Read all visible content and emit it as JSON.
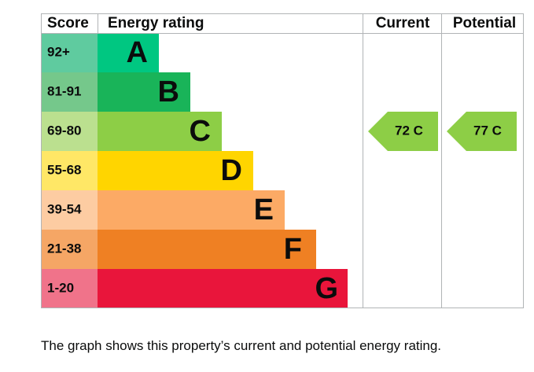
{
  "header": {
    "score": "Score",
    "energy_rating": "Energy rating",
    "current": "Current",
    "potential": "Potential"
  },
  "bands": [
    {
      "score": "92+",
      "letter": "A"
    },
    {
      "score": "81-91",
      "letter": "B"
    },
    {
      "score": "69-80",
      "letter": "C"
    },
    {
      "score": "55-68",
      "letter": "D"
    },
    {
      "score": "39-54",
      "letter": "E"
    },
    {
      "score": "21-38",
      "letter": "F"
    },
    {
      "score": "1-20",
      "letter": "G"
    }
  ],
  "current": "72 C",
  "potential": "77 C",
  "caption": "The graph shows this property’s current and potential energy rating."
}
